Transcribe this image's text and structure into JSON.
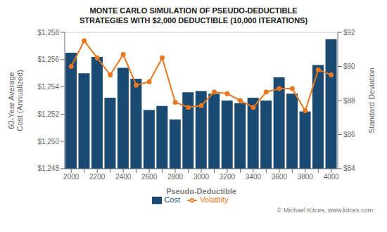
{
  "chart_data": {
    "type": "bar",
    "title": "MONTE CARLO SIMULATION OF PSEUDO-DEDUCTIBLE\nSTRATEGIES WITH $2,000 DEDUCTIBLE (10,000 ITERATIONS)",
    "xlabel": "Pseudo-Deductible",
    "ylabel": "60-Year Average\nCost (Annualized)",
    "y2label": "Standard Deviation",
    "categories": [
      2000,
      null,
      2200,
      null,
      2400,
      null,
      2600,
      null,
      2800,
      null,
      3000,
      null,
      3200,
      null,
      3400,
      null,
      3600,
      null,
      3800,
      null,
      4000
    ],
    "series": [
      {
        "name": "Cost",
        "type": "bar",
        "color": "#1a4971",
        "values": [
          1256.5,
          1255.0,
          1256.2,
          1253.2,
          1255.4,
          1254.6,
          1252.3,
          1252.6,
          1251.6,
          1253.6,
          1253.7,
          1253.5,
          1253.0,
          1252.8,
          1253.2,
          1253.0,
          1254.7,
          1253.5,
          1252.2,
          1255.6,
          1257.5
        ]
      },
      {
        "name": "Volatility",
        "type": "line",
        "axis": "y2",
        "color": "#e87722",
        "marker": "circle",
        "values": [
          90.0,
          91.5,
          90.5,
          89.5,
          90.7,
          88.9,
          89.1,
          90.5,
          87.9,
          87.6,
          87.7,
          88.5,
          88.4,
          88.0,
          87.6,
          88.5,
          88.7,
          88.7,
          87.4,
          89.8,
          89.5
        ]
      }
    ],
    "ylim": [
      1248,
      1258
    ],
    "yticks": [
      {
        "value": 1248,
        "label": "$1,248"
      },
      {
        "value": 1250,
        "label": "$1,250"
      },
      {
        "value": 1252,
        "label": "$1,252"
      },
      {
        "value": 1254,
        "label": "$1,254"
      },
      {
        "value": 1256,
        "label": "$1,256"
      },
      {
        "value": 1258,
        "label": "$1,258"
      }
    ],
    "y2lim": [
      84,
      92
    ],
    "y2ticks": [
      {
        "value": 84,
        "label": "$84"
      },
      {
        "value": 86,
        "label": "$86"
      },
      {
        "value": 88,
        "label": "$88"
      },
      {
        "value": 90,
        "label": "$90"
      },
      {
        "value": 92,
        "label": "$92"
      }
    ],
    "grid": true,
    "legend": "bottom",
    "annotations": [
      {
        "text": "© Michael Kitces, www.kitces.com",
        "color": "#777777"
      }
    ]
  }
}
